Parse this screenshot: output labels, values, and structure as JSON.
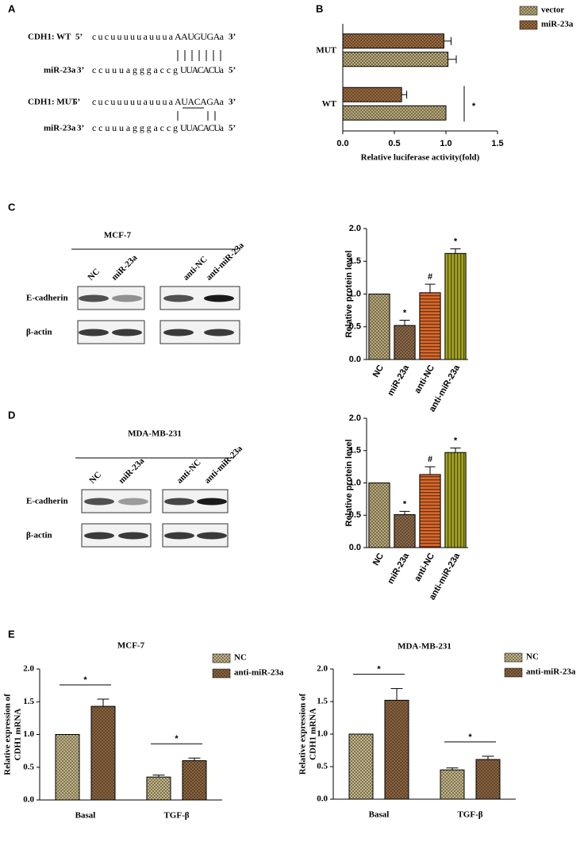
{
  "panel_labels": [
    "A",
    "B",
    "C",
    "D",
    "E"
  ],
  "sequences": [
    {
      "name": "CDH1: WT",
      "prime_left": "5’",
      "seq": "cucuuuuuauuua",
      "seed": "AAUGUGAa",
      "prime_right": "3’"
    },
    {
      "name": "miR-23a",
      "prime_left": "3’",
      "seq": "ccuuuagggaccg",
      "seed": "UUACACUa",
      "prime_right": "5’"
    },
    {
      "name": "CDH1: MUT",
      "prime_left": "5’",
      "seq": "cucuuuuuauuua",
      "seed": "AUACAGAa",
      "prime_right": "3’"
    },
    {
      "name": "miR-23a",
      "prime_left": "3’",
      "seq": "ccuuuagggaccg",
      "seed": "UUACACUa",
      "prime_right": "5’"
    }
  ],
  "blots": [
    {
      "cell_line": "MCF-7",
      "lanes": [
        "NC",
        "miR-23a",
        "anti-NC",
        "anti-miR-23a"
      ],
      "proteins": [
        "E-cadherin",
        "β-actin"
      ]
    },
    {
      "cell_line": "MDA-MB-231",
      "lanes": [
        "NC",
        "miR-23a",
        "anti-NC",
        "anti-miR-23a"
      ],
      "proteins": [
        "E-cadherin",
        "β-actin"
      ]
    }
  ],
  "chart_data": [
    {
      "type": "bar",
      "orientation": "horizontal",
      "xlabel": "Relative luciferase activity(fold)",
      "categories": [
        "MUT",
        "WT"
      ],
      "series": [
        {
          "name": "vector",
          "color": "#b8ab7c",
          "pattern": "checker",
          "values": [
            1.02,
            1.0
          ],
          "errors": [
            0.08,
            0
          ]
        },
        {
          "name": "miR-23a",
          "color": "#9a6a40",
          "pattern": "checker",
          "values": [
            0.98,
            0.57
          ],
          "errors": [
            0.07,
            0.05
          ]
        }
      ],
      "annotations": [
        null,
        "*"
      ],
      "xlim": [
        0,
        1.5
      ],
      "xticks": [
        {
          "value": 0,
          "label": "0.0"
        },
        {
          "value": 0.5,
          "label": "0.5"
        },
        {
          "value": 1,
          "label": "1.0"
        },
        {
          "value": 1.5,
          "label": "1.5"
        }
      ]
    },
    {
      "type": "bar",
      "ylabel": "Relative protein level",
      "categories": [
        "NC",
        "miR-23a",
        "anti-NC",
        "anti-miR-23a"
      ],
      "values": [
        1.0,
        0.52,
        1.02,
        1.62
      ],
      "errors": [
        0,
        0.08,
        0.13,
        0.07
      ],
      "colors": [
        "#b8ab7c",
        "#8c6a4a",
        "#d9692a",
        "#a3a322"
      ],
      "patterns": [
        "checker",
        "checker",
        "hstripe",
        "vstripe"
      ],
      "annotations": [
        null,
        "*",
        "#",
        "*"
      ],
      "ylim": [
        0,
        2
      ],
      "yticks": [
        {
          "value": 0,
          "label": "0.0"
        },
        {
          "value": 0.5,
          "label": "0.5"
        },
        {
          "value": 1,
          "label": "1.0"
        },
        {
          "value": 1.5,
          "label": "1.5"
        },
        {
          "value": 2,
          "label": "2.0"
        }
      ]
    },
    {
      "type": "bar",
      "ylabel": "Relative protein level",
      "categories": [
        "NC",
        "miR-23a",
        "anti-NC",
        "anti-miR-23a"
      ],
      "values": [
        1.0,
        0.51,
        1.13,
        1.47
      ],
      "errors": [
        0,
        0.05,
        0.12,
        0.07
      ],
      "colors": [
        "#b8ab7c",
        "#8c6a4a",
        "#d9692a",
        "#a3a322"
      ],
      "patterns": [
        "checker",
        "checker",
        "hstripe",
        "vstripe"
      ],
      "annotations": [
        null,
        "*",
        "#",
        "*"
      ],
      "ylim": [
        0,
        2
      ],
      "yticks": [
        {
          "value": 0,
          "label": "0.0"
        },
        {
          "value": 0.5,
          "label": "0.5"
        },
        {
          "value": 1,
          "label": "1.0"
        },
        {
          "value": 1.5,
          "label": "1.5"
        },
        {
          "value": 2,
          "label": "2.0"
        }
      ]
    },
    {
      "type": "bar",
      "title": "MCF-7",
      "ylabel": [
        "Relative expression of",
        "CDH1 mRNA"
      ],
      "categories": [
        "Basal",
        "TGF-β"
      ],
      "series": [
        {
          "name": "NC",
          "color": "#c2b78a",
          "pattern": "checker",
          "values": [
            1.0,
            0.35
          ],
          "errors": [
            0,
            0.03
          ]
        },
        {
          "name": "anti-miR-23a",
          "color": "#8a6440",
          "pattern": "checker",
          "values": [
            1.43,
            0.6
          ],
          "errors": [
            0.11,
            0.04
          ]
        }
      ],
      "annotations": [
        "*",
        "*"
      ],
      "ylim": [
        0,
        2
      ],
      "yticks": [
        {
          "value": 0,
          "label": "0.0"
        },
        {
          "value": 0.5,
          "label": "0.5"
        },
        {
          "value": 1,
          "label": "1.0"
        },
        {
          "value": 1.5,
          "label": "1.5"
        },
        {
          "value": 2,
          "label": "2.0"
        }
      ]
    },
    {
      "type": "bar",
      "title": "MDA-MB-231",
      "ylabel": [
        "Relative expression of",
        "CDH1 mRNA"
      ],
      "categories": [
        "Basal",
        "TGF-β"
      ],
      "series": [
        {
          "name": "NC",
          "color": "#c2b78a",
          "pattern": "checker",
          "values": [
            1.0,
            0.45
          ],
          "errors": [
            0,
            0.03
          ]
        },
        {
          "name": "anti-miR-23a",
          "color": "#8a6440",
          "pattern": "checker",
          "values": [
            1.52,
            0.61
          ],
          "errors": [
            0.18,
            0.05
          ]
        }
      ],
      "annotations": [
        "*",
        "*"
      ],
      "ylim": [
        0,
        2
      ],
      "yticks": [
        {
          "value": 0,
          "label": "0.0"
        },
        {
          "value": 0.5,
          "label": "0.5"
        },
        {
          "value": 1,
          "label": "1.0"
        },
        {
          "value": 1.5,
          "label": "1.5"
        },
        {
          "value": 2,
          "label": "2.0"
        }
      ]
    }
  ]
}
